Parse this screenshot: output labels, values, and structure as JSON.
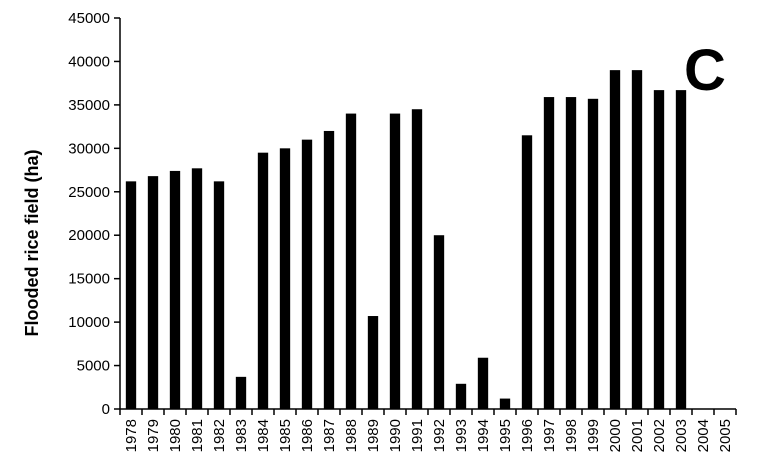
{
  "chart_data": {
    "type": "bar",
    "title": "",
    "panel_label": "C",
    "xlabel": "",
    "ylabel": "Flooded rice field (ha)",
    "ylim": [
      0,
      45000
    ],
    "yticks": [
      0,
      5000,
      10000,
      15000,
      20000,
      25000,
      30000,
      35000,
      40000,
      45000
    ],
    "grid": false,
    "legend": "none",
    "bar_color": "#000000",
    "categories": [
      "1978",
      "1979",
      "1980",
      "1981",
      "1982",
      "1983",
      "1984",
      "1985",
      "1986",
      "1987",
      "1988",
      "1989",
      "1990",
      "1991",
      "1992",
      "1993",
      "1994",
      "1995",
      "1996",
      "1997",
      "1998",
      "1999",
      "2000",
      "2001",
      "2002",
      "2003",
      "2004",
      "2005"
    ],
    "values": [
      26200,
      26800,
      27400,
      27700,
      26200,
      3700,
      29500,
      30000,
      31000,
      32000,
      34000,
      10700,
      34000,
      34500,
      20000,
      2900,
      5900,
      1200,
      31500,
      35900,
      35900,
      35700,
      39000,
      39000,
      36700,
      36700,
      0,
      0
    ]
  }
}
